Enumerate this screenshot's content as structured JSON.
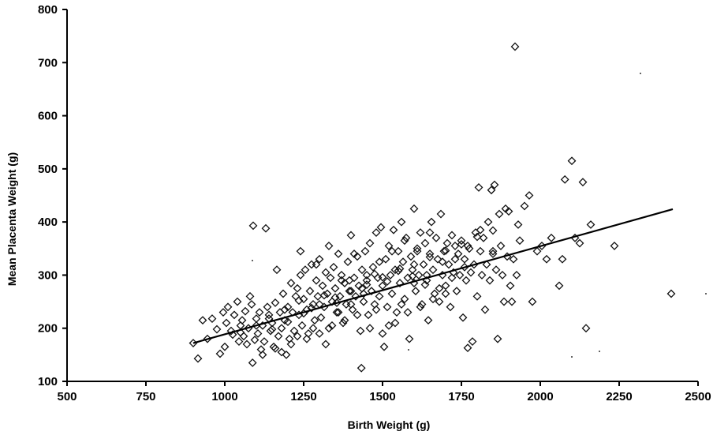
{
  "chart_data": {
    "type": "scatter",
    "title": "",
    "xlabel": "Birth Weight (g)",
    "ylabel": "Mean Placenta Weight (g)",
    "xlim": [
      500,
      2500
    ],
    "ylim": [
      100,
      800
    ],
    "xticks": [
      "500",
      "750",
      "1000",
      "1250",
      "1500",
      "1750",
      "2000",
      "2250",
      "2500"
    ],
    "yticks": [
      "100",
      "200",
      "300",
      "400",
      "500",
      "600",
      "700",
      "800"
    ],
    "grid": false,
    "marker": "diamond-open",
    "trendline": {
      "x": [
        900,
        2420
      ],
      "y": [
        172,
        424
      ]
    },
    "series": [
      {
        "name": "",
        "points": [
          [
            900,
            172
          ],
          [
            915,
            143
          ],
          [
            930,
            215
          ],
          [
            945,
            180
          ],
          [
            960,
            218
          ],
          [
            975,
            198
          ],
          [
            985,
            152
          ],
          [
            995,
            230
          ],
          [
            1000,
            165
          ],
          [
            1005,
            210
          ],
          [
            1010,
            240
          ],
          [
            1020,
            195
          ],
          [
            1025,
            188
          ],
          [
            1030,
            225
          ],
          [
            1040,
            250
          ],
          [
            1045,
            175
          ],
          [
            1050,
            205
          ],
          [
            1055,
            215
          ],
          [
            1060,
            185
          ],
          [
            1065,
            232
          ],
          [
            1070,
            170
          ],
          [
            1075,
            200
          ],
          [
            1080,
            260
          ],
          [
            1085,
            245
          ],
          [
            1088,
            135
          ],
          [
            1090,
            393
          ],
          [
            1095,
            178
          ],
          [
            1100,
            218
          ],
          [
            1105,
            190
          ],
          [
            1110,
            230
          ],
          [
            1115,
            160
          ],
          [
            1120,
            205
          ],
          [
            1125,
            175
          ],
          [
            1130,
            388
          ],
          [
            1135,
            240
          ],
          [
            1140,
            225
          ],
          [
            1145,
            195
          ],
          [
            1150,
            210
          ],
          [
            1155,
            165
          ],
          [
            1160,
            248
          ],
          [
            1165,
            310
          ],
          [
            1170,
            185
          ],
          [
            1175,
            230
          ],
          [
            1180,
            200
          ],
          [
            1185,
            265
          ],
          [
            1190,
            215
          ],
          [
            1195,
            150
          ],
          [
            1200,
            240
          ],
          [
            1205,
            180
          ],
          [
            1210,
            285
          ],
          [
            1215,
            230
          ],
          [
            1220,
            195
          ],
          [
            1225,
            260
          ],
          [
            1230,
            275
          ],
          [
            1235,
            225
          ],
          [
            1240,
            300
          ],
          [
            1245,
            205
          ],
          [
            1250,
            255
          ],
          [
            1255,
            310
          ],
          [
            1260,
            235
          ],
          [
            1265,
            190
          ],
          [
            1270,
            270
          ],
          [
            1275,
            320
          ],
          [
            1280,
            245
          ],
          [
            1285,
            215
          ],
          [
            1290,
            290
          ],
          [
            1295,
            260
          ],
          [
            1300,
            330
          ],
          [
            1305,
            220
          ],
          [
            1310,
            280
          ],
          [
            1315,
            240
          ],
          [
            1320,
            305
          ],
          [
            1325,
            265
          ],
          [
            1330,
            200
          ],
          [
            1335,
            295
          ],
          [
            1340,
            250
          ],
          [
            1345,
            315
          ],
          [
            1350,
            275
          ],
          [
            1355,
            230
          ],
          [
            1360,
            340
          ],
          [
            1365,
            260
          ],
          [
            1370,
            300
          ],
          [
            1375,
            210
          ],
          [
            1380,
            285
          ],
          [
            1385,
            245
          ],
          [
            1390,
            325
          ],
          [
            1395,
            270
          ],
          [
            1400,
            375
          ],
          [
            1405,
            235
          ],
          [
            1410,
            295
          ],
          [
            1415,
            260
          ],
          [
            1420,
            335
          ],
          [
            1425,
            280
          ],
          [
            1430,
            195
          ],
          [
            1433,
            125
          ],
          [
            1435,
            310
          ],
          [
            1440,
            250
          ],
          [
            1445,
            345
          ],
          [
            1450,
            290
          ],
          [
            1455,
            225
          ],
          [
            1460,
            360
          ],
          [
            1465,
            270
          ],
          [
            1470,
            315
          ],
          [
            1475,
            245
          ],
          [
            1480,
            380
          ],
          [
            1485,
            295
          ],
          [
            1490,
            260
          ],
          [
            1495,
            390
          ],
          [
            1500,
            280
          ],
          [
            1505,
            165
          ],
          [
            1510,
            330
          ],
          [
            1515,
            240
          ],
          [
            1520,
            355
          ],
          [
            1525,
            300
          ],
          [
            1530,
            265
          ],
          [
            1535,
            385
          ],
          [
            1540,
            310
          ],
          [
            1545,
            230
          ],
          [
            1550,
            345
          ],
          [
            1555,
            285
          ],
          [
            1560,
            400
          ],
          [
            1565,
            325
          ],
          [
            1570,
            255
          ],
          [
            1575,
            370
          ],
          [
            1580,
            295
          ],
          [
            1585,
            180
          ],
          [
            1590,
            335
          ],
          [
            1595,
            310
          ],
          [
            1600,
            425
          ],
          [
            1605,
            270
          ],
          [
            1610,
            350
          ],
          [
            1615,
            300
          ],
          [
            1620,
            380
          ],
          [
            1625,
            245
          ],
          [
            1630,
            320
          ],
          [
            1635,
            360
          ],
          [
            1640,
            290
          ],
          [
            1645,
            215
          ],
          [
            1650,
            340
          ],
          [
            1655,
            400
          ],
          [
            1660,
            310
          ],
          [
            1665,
            265
          ],
          [
            1670,
            370
          ],
          [
            1675,
            330
          ],
          [
            1680,
            250
          ],
          [
            1685,
            415
          ],
          [
            1690,
            300
          ],
          [
            1695,
            345
          ],
          [
            1700,
            280
          ],
          [
            1705,
            360
          ],
          [
            1710,
            320
          ],
          [
            1715,
            240
          ],
          [
            1720,
            375
          ],
          [
            1725,
            305
          ],
          [
            1730,
            355
          ],
          [
            1735,
            270
          ],
          [
            1740,
            340
          ],
          [
            1745,
            300
          ],
          [
            1750,
            365
          ],
          [
            1755,
            220
          ],
          [
            1760,
            330
          ],
          [
            1765,
            290
          ],
          [
            1770,
            163
          ],
          [
            1775,
            350
          ],
          [
            1780,
            305
          ],
          [
            1785,
            175
          ],
          [
            1790,
            320
          ],
          [
            1795,
            380
          ],
          [
            1800,
            260
          ],
          [
            1805,
            465
          ],
          [
            1810,
            345
          ],
          [
            1815,
            300
          ],
          [
            1820,
            370
          ],
          [
            1825,
            235
          ],
          [
            1830,
            320
          ],
          [
            1835,
            400
          ],
          [
            1840,
            290
          ],
          [
            1845,
            460
          ],
          [
            1850,
            340
          ],
          [
            1855,
            470
          ],
          [
            1860,
            310
          ],
          [
            1865,
            180
          ],
          [
            1870,
            415
          ],
          [
            1875,
            355
          ],
          [
            1880,
            300
          ],
          [
            1885,
            250
          ],
          [
            1890,
            425
          ],
          [
            1895,
            335
          ],
          [
            1900,
            420
          ],
          [
            1905,
            280
          ],
          [
            1910,
            250
          ],
          [
            1915,
            330
          ],
          [
            1920,
            730
          ],
          [
            1925,
            300
          ],
          [
            1930,
            395
          ],
          [
            1935,
            365
          ],
          [
            1950,
            430
          ],
          [
            1965,
            450
          ],
          [
            1975,
            250
          ],
          [
            1990,
            345
          ],
          [
            2005,
            355
          ],
          [
            2020,
            330
          ],
          [
            2035,
            370
          ],
          [
            2060,
            280
          ],
          [
            2070,
            330
          ],
          [
            2078,
            480
          ],
          [
            2100,
            515
          ],
          [
            2110,
            370
          ],
          [
            2125,
            360
          ],
          [
            2135,
            475
          ],
          [
            2145,
            200
          ],
          [
            2160,
            395
          ],
          [
            2235,
            355
          ],
          [
            2415,
            265
          ],
          [
            1180,
            155
          ],
          [
            1210,
            170
          ],
          [
            1260,
            180
          ],
          [
            1300,
            190
          ],
          [
            1340,
            205
          ],
          [
            1380,
            215
          ],
          [
            1420,
            225
          ],
          [
            1460,
            200
          ],
          [
            1500,
            190
          ],
          [
            1540,
            210
          ],
          [
            1580,
            230
          ],
          [
            1620,
            240
          ],
          [
            1660,
            255
          ],
          [
            1700,
            265
          ],
          [
            1120,
            150
          ],
          [
            1160,
            162
          ],
          [
            1230,
            185
          ],
          [
            1280,
            200
          ],
          [
            1320,
            170
          ],
          [
            1360,
            230
          ],
          [
            1400,
            245
          ],
          [
            1440,
            265
          ],
          [
            1480,
            235
          ],
          [
            1520,
            205
          ],
          [
            1560,
            245
          ],
          [
            1600,
            285
          ],
          [
            1640,
            300
          ],
          [
            1680,
            275
          ],
          [
            1720,
            295
          ],
          [
            1760,
            315
          ],
          [
            1240,
            345
          ],
          [
            1290,
            320
          ],
          [
            1330,
            355
          ],
          [
            1370,
            290
          ],
          [
            1410,
            340
          ],
          [
            1450,
            300
          ],
          [
            1490,
            325
          ],
          [
            1530,
            345
          ],
          [
            1570,
            365
          ],
          [
            1610,
            345
          ],
          [
            1650,
            380
          ],
          [
            1690,
            325
          ],
          [
            1730,
            330
          ],
          [
            1770,
            355
          ],
          [
            1810,
            385
          ],
          [
            1850,
            345
          ],
          [
            1150,
            198
          ],
          [
            1200,
            212
          ],
          [
            1250,
            228
          ],
          [
            1300,
            245
          ],
          [
            1350,
            258
          ],
          [
            1400,
            270
          ],
          [
            1450,
            282
          ],
          [
            1500,
            296
          ],
          [
            1550,
            308
          ],
          [
            1600,
            320
          ],
          [
            1650,
            334
          ],
          [
            1700,
            346
          ],
          [
            1750,
            358
          ],
          [
            1800,
            372
          ],
          [
            1850,
            384
          ],
          [
            1050,
            192
          ],
          [
            1100,
            205
          ],
          [
            1140,
            218
          ],
          [
            1190,
            235
          ],
          [
            1235,
            252
          ],
          [
            1275,
            238
          ],
          [
            1315,
            262
          ],
          [
            1355,
            248
          ],
          [
            1395,
            290
          ],
          [
            1435,
            275
          ],
          [
            1475,
            302
          ],
          [
            1515,
            288
          ],
          [
            1555,
            312
          ],
          [
            1595,
            298
          ],
          [
            1635,
            282
          ]
        ]
      }
    ]
  }
}
